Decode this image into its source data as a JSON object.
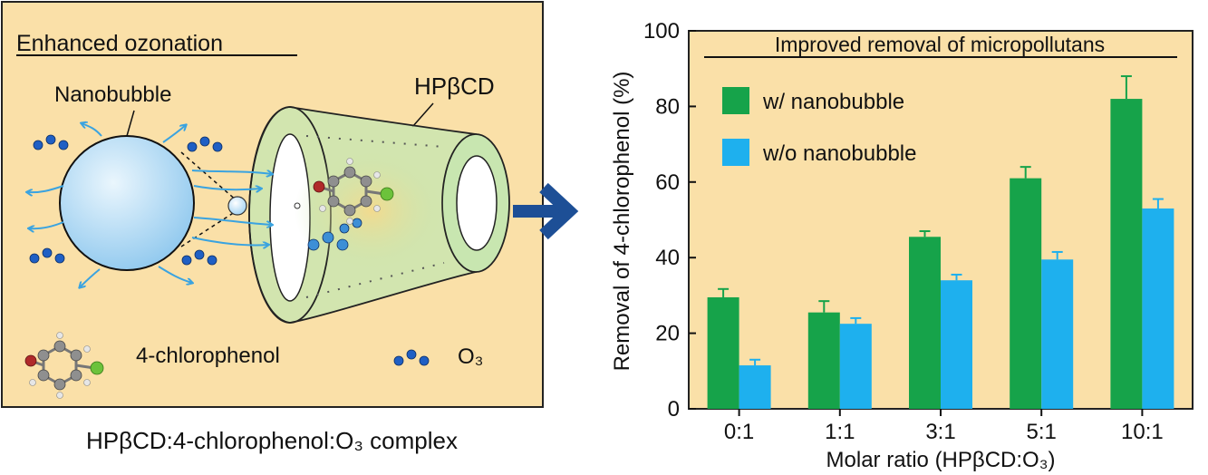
{
  "left_panel": {
    "title": "Enhanced ozonation",
    "nanobubble_label": "Nanobubble",
    "host_label": "HPβCD",
    "legend_molecule_label": "4-chlorophenol",
    "legend_ozone_label": "O₃",
    "caption": "HPβCD:4-chlorophenol:O₃ complex",
    "colors": {
      "panel_bg": "#fae0a8",
      "bubble": "#b5ddf5",
      "arrow": "#3aa3e0",
      "ozone": "#1f5fc4",
      "cyclodextrin": "#c8e6b0"
    }
  },
  "transition_arrow": {
    "icon": "right-arrow-icon",
    "color": "#1d4f96"
  },
  "chart_data": {
    "type": "bar",
    "title": "Improved removal of micropollutans",
    "xlabel": "Molar ratio (HPβCD:O₃)",
    "ylabel": "Removal of 4-chlorophenol (%)",
    "categories": [
      "0:1",
      "1:1",
      "3:1",
      "5:1",
      "10:1"
    ],
    "ylim": [
      0,
      100
    ],
    "yticks": [
      0,
      20,
      40,
      60,
      80,
      100
    ],
    "series": [
      {
        "name": "w/ nanobubble",
        "color": "#16a34a",
        "values": [
          29.5,
          25.5,
          45.5,
          61,
          82
        ],
        "errors": [
          2.2,
          3,
          1.5,
          3,
          6
        ]
      },
      {
        "name": "w/o nanobubble",
        "color": "#1eb0ee",
        "values": [
          11.5,
          22.5,
          34,
          39.5,
          53
        ],
        "errors": [
          1.5,
          1.5,
          1.5,
          2,
          2.5
        ]
      }
    ],
    "legend_position": "top-left",
    "grid": false,
    "background": "#fae0a8"
  }
}
